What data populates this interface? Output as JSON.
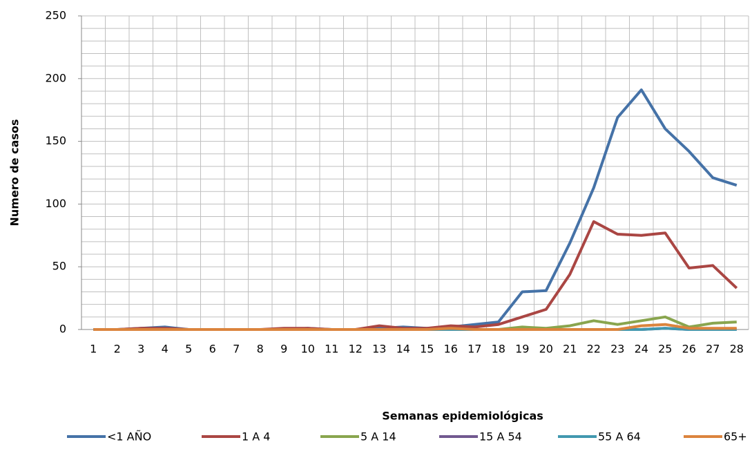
{
  "chart_data": {
    "type": "line",
    "y_label": "Numero de casos",
    "x_label": "Semanas epidemiológicas",
    "categories": [
      "1",
      "2",
      "3",
      "4",
      "5",
      "6",
      "7",
      "8",
      "9",
      "10",
      "11",
      "12",
      "13",
      "14",
      "15",
      "16",
      "17",
      "18",
      "19",
      "20",
      "21",
      "22",
      "23",
      "24",
      "25",
      "26",
      "27",
      "28"
    ],
    "series": [
      {
        "name": "<1 AÑO",
        "color": "#4572a7",
        "values": [
          0,
          0,
          1,
          2,
          0,
          0,
          0,
          0,
          0,
          1,
          0,
          0,
          1,
          2,
          1,
          2,
          4,
          6,
          30,
          31,
          69,
          113,
          169,
          191,
          160,
          142,
          121,
          115
        ]
      },
      {
        "name": "1 A 4",
        "color": "#aa4643",
        "values": [
          0,
          0,
          1,
          1,
          0,
          0,
          0,
          0,
          1,
          1,
          0,
          0,
          3,
          1,
          1,
          3,
          2,
          4,
          10,
          16,
          44,
          86,
          76,
          75,
          77,
          49,
          51,
          33
        ]
      },
      {
        "name": "5 A 14",
        "color": "#89a54e",
        "values": [
          0,
          0,
          0,
          0,
          0,
          0,
          0,
          0,
          0,
          0,
          0,
          0,
          0,
          0,
          0,
          0,
          0,
          0,
          2,
          1,
          3,
          7,
          4,
          7,
          10,
          2,
          5,
          6
        ]
      },
      {
        "name": "15 A 54",
        "color": "#71588f",
        "values": [
          0,
          0,
          0,
          0,
          0,
          0,
          0,
          0,
          0,
          0,
          0,
          0,
          0,
          0,
          0,
          0,
          0,
          0,
          0,
          0,
          0,
          0,
          0,
          0,
          1,
          0,
          0,
          0
        ]
      },
      {
        "name": "55 A 64",
        "color": "#4198af",
        "values": [
          0,
          0,
          0,
          0,
          0,
          0,
          0,
          0,
          0,
          0,
          0,
          0,
          0,
          0,
          0,
          0,
          0,
          0,
          0,
          0,
          0,
          0,
          0,
          0,
          1,
          0,
          0,
          0
        ]
      },
      {
        "name": "65+",
        "color": "#db843d",
        "values": [
          0,
          0,
          0,
          0,
          0,
          0,
          0,
          0,
          0,
          0,
          0,
          0,
          0,
          0,
          0,
          1,
          0,
          0,
          0,
          0,
          0,
          0,
          0,
          3,
          4,
          1,
          1,
          1
        ]
      }
    ],
    "ylim": [
      0,
      250
    ],
    "yticks": [
      0,
      50,
      100,
      150,
      200,
      250
    ],
    "ygrid": [
      0,
      10,
      20,
      30,
      40,
      50,
      60,
      70,
      80,
      90,
      100,
      110,
      120,
      130,
      140,
      150,
      160,
      170,
      180,
      190,
      200,
      210,
      220,
      230,
      240,
      250
    ],
    "grid": true,
    "legend": "bottom"
  }
}
